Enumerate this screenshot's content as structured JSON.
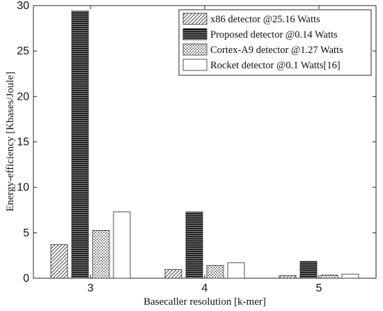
{
  "chart_data": {
    "type": "bar",
    "title": "",
    "xlabel": "Basecaller resolution [k-mer]",
    "ylabel": "Energy-efficiency [Kbases/Joule]",
    "categories": [
      "3",
      "4",
      "5"
    ],
    "ylim": [
      0,
      30
    ],
    "yticks": [
      "0",
      "5",
      "10",
      "15",
      "20",
      "25",
      "30"
    ],
    "grid": "off",
    "legend_position": "top-right",
    "series": [
      {
        "name": "x86 detector @25.16 Watts",
        "pattern": "diagonal-hatch",
        "values": [
          3.7,
          0.95,
          0.3
        ]
      },
      {
        "name": "Proposed detector @0.14 Watts",
        "pattern": "horizontal-stripes-black",
        "values": [
          29.4,
          7.3,
          1.85
        ]
      },
      {
        "name": "Cortex-A9 detector @1.27 Watts",
        "pattern": "dots",
        "values": [
          5.25,
          1.4,
          0.35
        ]
      },
      {
        "name": "Rocket detector @0.1 Watts[16]",
        "pattern": "white",
        "values": [
          7.3,
          1.7,
          0.45
        ]
      }
    ]
  }
}
